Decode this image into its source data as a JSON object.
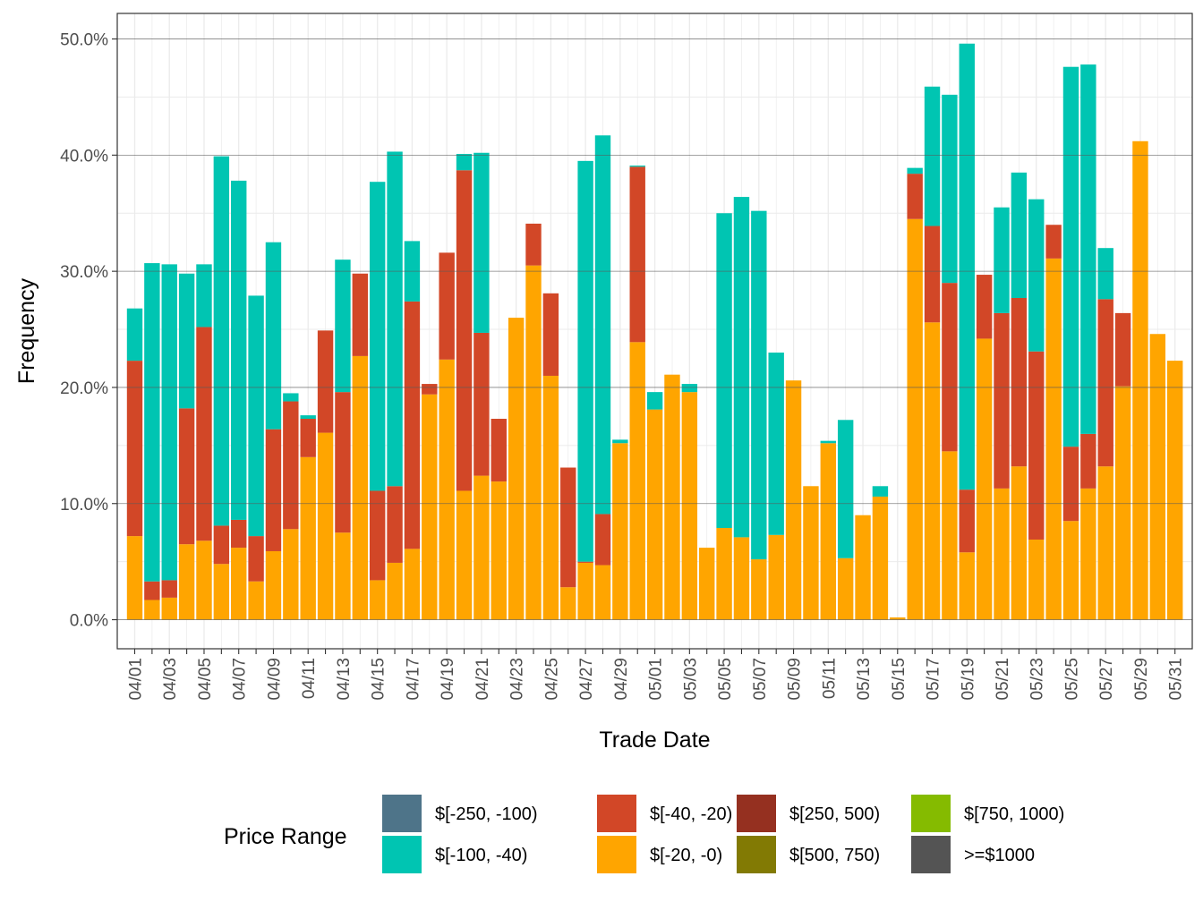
{
  "chart_data": {
    "type": "bar",
    "stacked": true,
    "xlabel": "Trade Date",
    "ylabel": "Frequency",
    "ylim": [
      -2.5,
      52.2
    ],
    "yticks": [
      "0.0%",
      "10.0%",
      "20.0%",
      "30.0%",
      "40.0%",
      "50.0%"
    ],
    "ytick_values": [
      0,
      10,
      20,
      30,
      40,
      50
    ],
    "grid": true,
    "legend_title": "Price Range",
    "legend_position": "bottom",
    "categories": [
      "04/01",
      "04/02",
      "04/03",
      "04/04",
      "04/05",
      "04/06",
      "04/07",
      "04/08",
      "04/09",
      "04/10",
      "04/11",
      "04/12",
      "04/13",
      "04/14",
      "04/15",
      "04/16",
      "04/17",
      "04/18",
      "04/19",
      "04/20",
      "04/21",
      "04/22",
      "04/23",
      "04/24",
      "04/25",
      "04/26",
      "04/27",
      "04/28",
      "04/29",
      "04/30",
      "05/01",
      "05/02",
      "05/03",
      "05/04",
      "05/05",
      "05/06",
      "05/07",
      "05/08",
      "05/09",
      "05/10",
      "05/11",
      "05/12",
      "05/13",
      "05/14",
      "05/15",
      "05/16",
      "05/17",
      "05/18",
      "05/19",
      "05/20",
      "05/21",
      "05/22",
      "05/23",
      "05/24",
      "05/25",
      "05/26",
      "05/27",
      "05/28",
      "05/29",
      "05/30",
      "05/31"
    ],
    "xtick_labels": [
      "04/01",
      "04/03",
      "04/05",
      "04/07",
      "04/09",
      "04/11",
      "04/13",
      "04/15",
      "04/17",
      "04/19",
      "04/21",
      "04/23",
      "04/25",
      "04/27",
      "04/29",
      "05/01",
      "05/03",
      "05/05",
      "05/07",
      "05/09",
      "05/11",
      "05/13",
      "05/15",
      "05/17",
      "05/19",
      "05/21",
      "05/23",
      "05/25",
      "05/27",
      "05/29",
      "05/31"
    ],
    "series": [
      {
        "name": "$[-250, -100)",
        "color": "#4e7489",
        "values": [
          0,
          0,
          0,
          0,
          0,
          0,
          0,
          0,
          0,
          0,
          0,
          0,
          0,
          0,
          0,
          0,
          0,
          0,
          0,
          0,
          0,
          0,
          0,
          0,
          0,
          0,
          0,
          0,
          0,
          0,
          0,
          0,
          0,
          0,
          0,
          0,
          0,
          0,
          0,
          0,
          0,
          0,
          0,
          0,
          0,
          0,
          0,
          0,
          0,
          0,
          0,
          0,
          0,
          0,
          0,
          0,
          0,
          0,
          0,
          0,
          0
        ]
      },
      {
        "name": "$[-100, -40)",
        "color": "#00c5b2",
        "values": [
          4.5,
          27.4,
          27.2,
          11.6,
          5.4,
          31.8,
          29.2,
          20.7,
          16.1,
          0.7,
          0.3,
          0,
          11.4,
          0,
          26.6,
          28.8,
          5.2,
          0,
          0,
          1.4,
          15.5,
          0,
          0,
          0,
          0,
          0,
          34.5,
          32.6,
          0.3,
          0.1,
          1.5,
          0,
          0.7,
          0,
          27.1,
          29.3,
          30.0,
          15.7,
          0,
          0,
          0.2,
          11.9,
          0,
          0.9,
          0,
          0.5,
          12.0,
          16.2,
          38.4,
          0,
          9.1,
          10.8,
          13.1,
          0,
          32.7,
          31.8,
          4.4,
          0,
          0,
          0,
          0
        ]
      },
      {
        "name": "$[-40, -20)",
        "color": "#d24727",
        "values": [
          15.1,
          1.6,
          1.5,
          11.7,
          18.4,
          3.3,
          2.4,
          3.9,
          10.5,
          11.0,
          3.3,
          8.8,
          12.1,
          7.1,
          7.7,
          6.6,
          21.3,
          0.9,
          9.2,
          27.6,
          12.3,
          5.4,
          0,
          3.6,
          7.1,
          10.3,
          0.1,
          4.4,
          0,
          15.1,
          0,
          0,
          0,
          0,
          0,
          0,
          0,
          0,
          0,
          0,
          0,
          0,
          0,
          0,
          0,
          3.9,
          8.3,
          14.5,
          5.4,
          5.5,
          15.1,
          14.5,
          16.2,
          2.9,
          6.4,
          4.7,
          14.4,
          6.3,
          0,
          0,
          0
        ]
      },
      {
        "name": "$[-20, -0)",
        "color": "#ffa500",
        "values": [
          7.2,
          1.7,
          1.9,
          6.5,
          6.8,
          4.8,
          6.2,
          3.3,
          5.9,
          7.8,
          14.0,
          16.1,
          7.5,
          22.7,
          3.4,
          4.9,
          6.1,
          19.4,
          22.4,
          11.1,
          12.4,
          11.9,
          26.0,
          30.5,
          21.0,
          2.8,
          4.9,
          4.7,
          15.2,
          23.9,
          18.1,
          21.1,
          19.6,
          6.2,
          7.9,
          7.1,
          5.2,
          7.3,
          20.6,
          11.5,
          15.2,
          5.3,
          9.0,
          10.6,
          0.2,
          34.5,
          25.6,
          14.5,
          5.8,
          24.2,
          11.3,
          13.2,
          6.9,
          31.1,
          8.5,
          11.3,
          13.2,
          20.1,
          41.2,
          24.6,
          22.3
        ]
      },
      {
        "name": "$[250, 500)",
        "color": "#953020",
        "values": [
          0,
          0,
          0,
          0,
          0,
          0,
          0,
          0,
          0,
          0,
          0,
          0,
          0,
          0,
          0,
          0,
          0,
          0,
          0,
          0,
          0,
          0,
          0,
          0,
          0,
          0,
          0,
          0,
          0,
          0,
          0,
          0,
          0,
          0,
          0,
          0,
          0,
          0,
          0,
          0,
          0,
          0,
          0,
          0,
          0,
          0,
          0,
          0,
          0,
          0,
          0,
          0,
          0,
          0,
          0,
          0,
          0,
          0,
          0,
          0,
          0
        ]
      },
      {
        "name": "$[500, 750)",
        "color": "#827a04",
        "values": [
          0,
          0,
          0,
          0,
          0,
          0,
          0,
          0,
          0,
          0,
          0,
          0,
          0,
          0,
          0,
          0,
          0,
          0,
          0,
          0,
          0,
          0,
          0,
          0,
          0,
          0,
          0,
          0,
          0,
          0,
          0,
          0,
          0,
          0,
          0,
          0,
          0,
          0,
          0,
          0,
          0,
          0,
          0,
          0,
          0,
          0,
          0,
          0,
          0,
          0,
          0,
          0,
          0,
          0,
          0,
          0,
          0,
          0,
          0,
          0,
          0
        ]
      },
      {
        "name": "$[750, 1000)",
        "color": "#85bb00",
        "values": [
          0,
          0,
          0,
          0,
          0,
          0,
          0,
          0,
          0,
          0,
          0,
          0,
          0,
          0,
          0,
          0,
          0,
          0,
          0,
          0,
          0,
          0,
          0,
          0,
          0,
          0,
          0,
          0,
          0,
          0,
          0,
          0,
          0,
          0,
          0,
          0,
          0,
          0,
          0,
          0,
          0,
          0,
          0,
          0,
          0,
          0,
          0,
          0,
          0,
          0,
          0,
          0,
          0,
          0,
          0,
          0,
          0,
          0,
          0,
          0,
          0
        ]
      },
      {
        "name": ">=$1000",
        "color": "#545454",
        "values": [
          0,
          0,
          0,
          0,
          0,
          0,
          0,
          0,
          0,
          0,
          0,
          0,
          0,
          0,
          0,
          0,
          0,
          0,
          0,
          0,
          0,
          0,
          0,
          0,
          0,
          0,
          0,
          0,
          0,
          0,
          0,
          0,
          0,
          0,
          0,
          0,
          0,
          0,
          0,
          0,
          0,
          0,
          0,
          0,
          0,
          0,
          0,
          0,
          0,
          0,
          0,
          0,
          0,
          0,
          0,
          0,
          0,
          0,
          0,
          0,
          0
        ]
      }
    ]
  }
}
